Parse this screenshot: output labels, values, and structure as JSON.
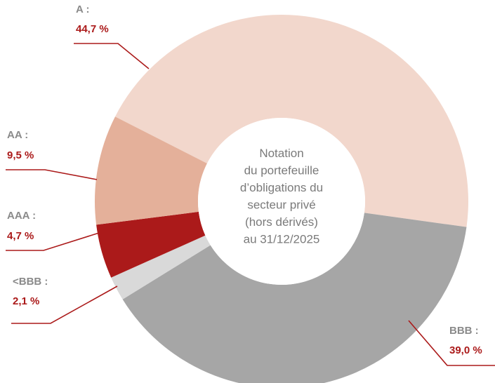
{
  "chart_data": {
    "type": "donut",
    "categories": [
      "A :",
      "BBB :",
      "<BBB :",
      "AAA :",
      "AA :"
    ],
    "values": [
      44.7,
      39.0,
      2.1,
      4.7,
      9.5
    ],
    "value_labels": [
      "44,7 %",
      "39,0 %",
      "2,1 %",
      "4,7 %",
      "9,5 %"
    ],
    "colors": [
      "#f2d7cc",
      "#a6a6a6",
      "#d9d9d9",
      "#ab1a1a",
      "#e4b09a"
    ],
    "center_label": [
      "Notation",
      "du portefeuille",
      "d’obligations du",
      "secteur privé",
      "(hors dérivés)",
      "au 31/12/2025"
    ]
  }
}
